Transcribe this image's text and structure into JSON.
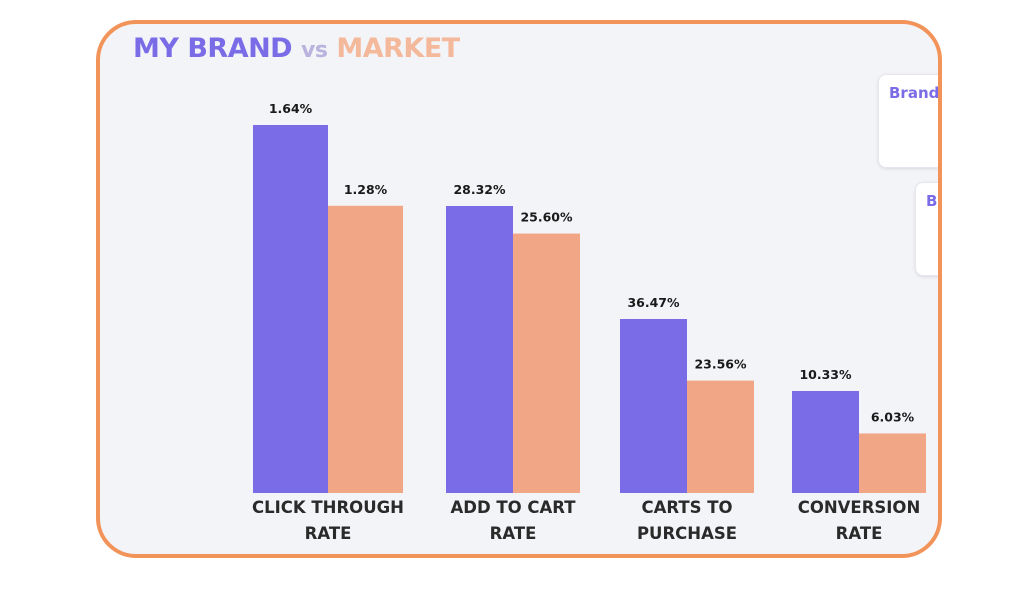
{
  "header": {
    "title_brand": "MY BRAND",
    "title_vs": "vs",
    "title_market": "MARKET"
  },
  "side_cards": [
    "Brand",
    "B"
  ],
  "colors": {
    "brand": "#7a6be6",
    "market": "#f1a686",
    "border": "#f2945a",
    "card_background": "#f3f4f8"
  },
  "chart_data": {
    "type": "bar",
    "categories": [
      [
        "CLICK THROUGH",
        "RATE"
      ],
      [
        "ADD TO CART",
        "RATE"
      ],
      [
        "CARTS TO",
        "PURCHASE"
      ],
      [
        "CONVERSION",
        "RATE"
      ]
    ],
    "series": [
      {
        "key": "brand",
        "values": [
          1.64,
          28.32,
          36.47,
          10.33
        ],
        "labels": [
          "1.64%",
          "28.32%",
          "36.47%",
          "10.33%"
        ]
      },
      {
        "key": "market",
        "values": [
          1.28,
          25.6,
          23.56,
          6.03
        ],
        "labels": [
          "1.28%",
          "25.60%",
          "23.56%",
          "6.03%"
        ]
      }
    ],
    "independent_scale_per_category": true,
    "grid": false,
    "legend": "none",
    "title": "MY BRAND vs MARKET"
  }
}
